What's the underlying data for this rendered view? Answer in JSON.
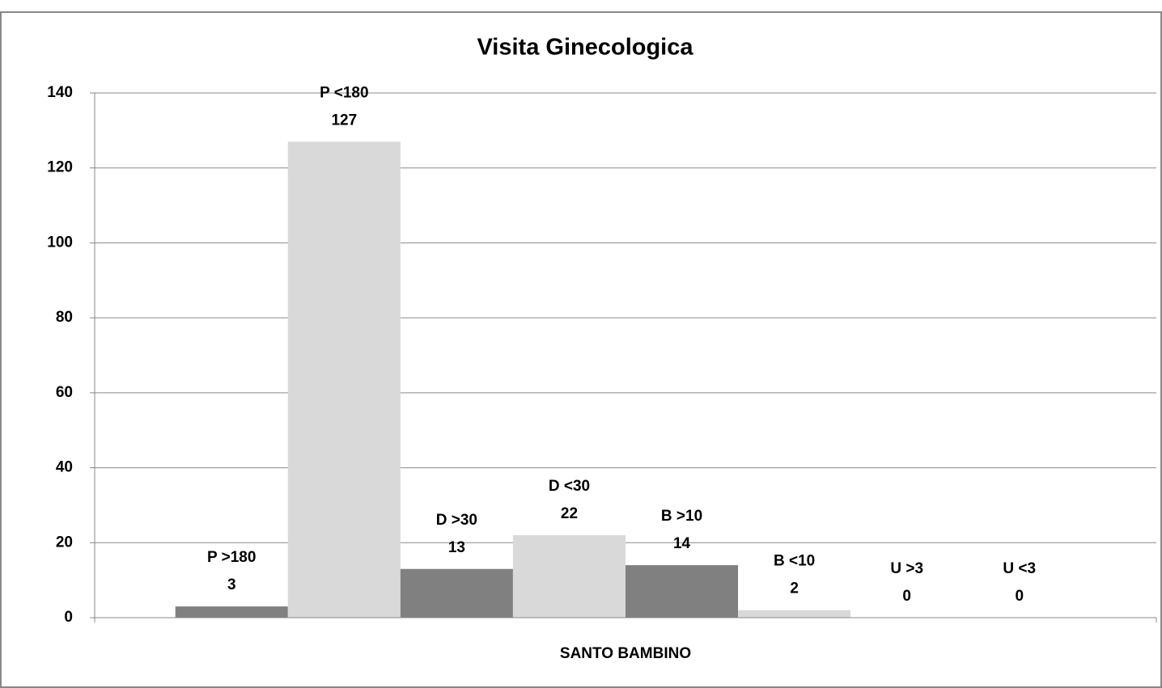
{
  "chart_data": {
    "type": "bar",
    "title": "Visita Ginecologica",
    "categories": [
      "SANTO BAMBINO"
    ],
    "series": [
      {
        "name": "P >180",
        "color": "#808080",
        "values": [
          3
        ]
      },
      {
        "name": "P <180",
        "color": "#d9d9d9",
        "values": [
          127
        ]
      },
      {
        "name": "D >30",
        "color": "#808080",
        "values": [
          13
        ]
      },
      {
        "name": "D <30",
        "color": "#d9d9d9",
        "values": [
          22
        ]
      },
      {
        "name": "B >10",
        "color": "#808080",
        "values": [
          14
        ]
      },
      {
        "name": "B <10",
        "color": "#d9d9d9",
        "values": [
          2
        ]
      },
      {
        "name": "U >3",
        "color": "#808080",
        "values": [
          0
        ]
      },
      {
        "name": "U <3",
        "color": "#d9d9d9",
        "values": [
          0
        ]
      }
    ],
    "ylim": [
      0,
      140
    ],
    "yticks": [
      0,
      20,
      40,
      60,
      80,
      100,
      120,
      140
    ],
    "grid": true
  }
}
